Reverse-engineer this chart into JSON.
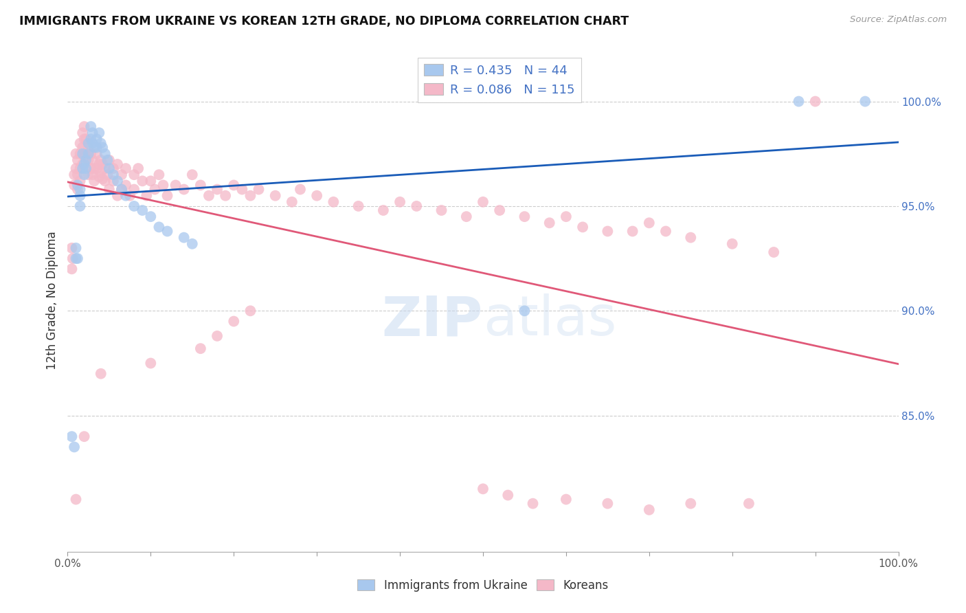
{
  "title": "IMMIGRANTS FROM UKRAINE VS KOREAN 12TH GRADE, NO DIPLOMA CORRELATION CHART",
  "source": "Source: ZipAtlas.com",
  "ylabel": "12th Grade, No Diploma",
  "yticks": [
    "100.0%",
    "95.0%",
    "90.0%",
    "85.0%"
  ],
  "ytick_vals": [
    1.0,
    0.95,
    0.9,
    0.85
  ],
  "xrange": [
    0.0,
    1.0
  ],
  "yrange": [
    0.785,
    1.025
  ],
  "legend_entry_1": "R = 0.435   N = 44",
  "legend_entry_2": "R = 0.086   N = 115",
  "ukraine_color": "#a8c8ee",
  "korean_color": "#f4b8c8",
  "ukraine_line_color": "#1a5cb8",
  "korean_line_color": "#e05878",
  "legend_labels": [
    "Immigrants from Ukraine",
    "Koreans"
  ],
  "watermark": "ZIPatlas",
  "ukraine_x": [
    0.005,
    0.008,
    0.01,
    0.01,
    0.012,
    0.012,
    0.015,
    0.015,
    0.015,
    0.018,
    0.018,
    0.02,
    0.02,
    0.022,
    0.022,
    0.025,
    0.025,
    0.028,
    0.028,
    0.03,
    0.03,
    0.032,
    0.035,
    0.035,
    0.038,
    0.04,
    0.042,
    0.045,
    0.048,
    0.05,
    0.055,
    0.06,
    0.065,
    0.07,
    0.08,
    0.09,
    0.1,
    0.11,
    0.12,
    0.14,
    0.15,
    0.55,
    0.88,
    0.96
  ],
  "ukraine_y": [
    0.84,
    0.835,
    0.93,
    0.925,
    0.925,
    0.96,
    0.958,
    0.955,
    0.95,
    0.975,
    0.968,
    0.97,
    0.965,
    0.972,
    0.968,
    0.98,
    0.975,
    0.988,
    0.982,
    0.985,
    0.98,
    0.978,
    0.982,
    0.978,
    0.985,
    0.98,
    0.978,
    0.975,
    0.972,
    0.968,
    0.965,
    0.962,
    0.958,
    0.955,
    0.95,
    0.948,
    0.945,
    0.94,
    0.938,
    0.935,
    0.932,
    0.9,
    1.0,
    1.0
  ],
  "korean_x": [
    0.005,
    0.005,
    0.006,
    0.008,
    0.008,
    0.01,
    0.01,
    0.01,
    0.012,
    0.012,
    0.012,
    0.015,
    0.015,
    0.015,
    0.015,
    0.018,
    0.018,
    0.018,
    0.02,
    0.02,
    0.02,
    0.02,
    0.022,
    0.022,
    0.025,
    0.025,
    0.025,
    0.028,
    0.028,
    0.03,
    0.03,
    0.032,
    0.032,
    0.035,
    0.035,
    0.038,
    0.038,
    0.04,
    0.04,
    0.042,
    0.042,
    0.045,
    0.045,
    0.048,
    0.05,
    0.05,
    0.055,
    0.055,
    0.06,
    0.06,
    0.065,
    0.065,
    0.07,
    0.07,
    0.075,
    0.08,
    0.08,
    0.085,
    0.09,
    0.095,
    0.1,
    0.105,
    0.11,
    0.115,
    0.12,
    0.13,
    0.14,
    0.15,
    0.16,
    0.17,
    0.18,
    0.19,
    0.2,
    0.21,
    0.22,
    0.23,
    0.25,
    0.27,
    0.28,
    0.3,
    0.32,
    0.35,
    0.38,
    0.4,
    0.42,
    0.45,
    0.48,
    0.5,
    0.52,
    0.55,
    0.58,
    0.6,
    0.62,
    0.65,
    0.68,
    0.7,
    0.72,
    0.75,
    0.8,
    0.85,
    0.04,
    0.1,
    0.16,
    0.18,
    0.2,
    0.22,
    0.5,
    0.53,
    0.56,
    0.6,
    0.65,
    0.7,
    0.75,
    0.82,
    0.9
  ],
  "korean_y": [
    0.93,
    0.92,
    0.925,
    0.965,
    0.96,
    0.975,
    0.968,
    0.81,
    0.972,
    0.965,
    0.958,
    0.98,
    0.975,
    0.968,
    0.962,
    0.985,
    0.978,
    0.97,
    0.988,
    0.982,
    0.975,
    0.84,
    0.982,
    0.975,
    0.978,
    0.972,
    0.965,
    0.975,
    0.968,
    0.972,
    0.965,
    0.968,
    0.962,
    0.975,
    0.968,
    0.97,
    0.964,
    0.972,
    0.966,
    0.97,
    0.963,
    0.968,
    0.962,
    0.965,
    0.972,
    0.958,
    0.968,
    0.962,
    0.97,
    0.955,
    0.965,
    0.958,
    0.968,
    0.96,
    0.955,
    0.965,
    0.958,
    0.968,
    0.962,
    0.955,
    0.962,
    0.958,
    0.965,
    0.96,
    0.955,
    0.96,
    0.958,
    0.965,
    0.96,
    0.955,
    0.958,
    0.955,
    0.96,
    0.958,
    0.955,
    0.958,
    0.955,
    0.952,
    0.958,
    0.955,
    0.952,
    0.95,
    0.948,
    0.952,
    0.95,
    0.948,
    0.945,
    0.952,
    0.948,
    0.945,
    0.942,
    0.945,
    0.94,
    0.938,
    0.938,
    0.942,
    0.938,
    0.935,
    0.932,
    0.928,
    0.87,
    0.875,
    0.882,
    0.888,
    0.895,
    0.9,
    0.815,
    0.812,
    0.808,
    0.81,
    0.808,
    0.805,
    0.808,
    0.808,
    1.0
  ]
}
